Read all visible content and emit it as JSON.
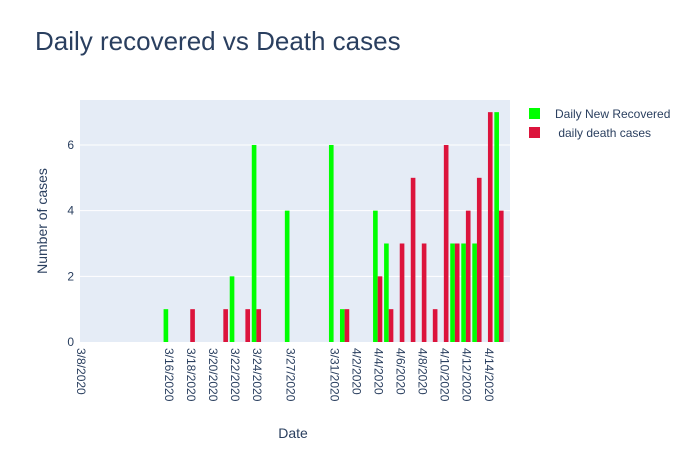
{
  "chart_data": {
    "type": "bar",
    "title": "Daily recovered vs Death cases",
    "xlabel": "Date",
    "ylabel": "Number of cases",
    "ylim": [
      0,
      7.37
    ],
    "y_ticks": [
      0,
      2,
      4,
      6
    ],
    "grid": true,
    "legend_position": "top-right",
    "categories": [
      "3/8/2020",
      "3/16/2020",
      "3/18/2020",
      "3/20/2020",
      "3/21/2020",
      "3/22/2020",
      "3/23/2020",
      "3/24/2020",
      "3/27/2020",
      "3/31/2020",
      "4/1/2020",
      "4/2/2020",
      "4/4/2020",
      "4/5/2020",
      "4/6/2020",
      "4/7/2020",
      "4/8/2020",
      "4/9/2020",
      "4/10/2020",
      "4/11/2020",
      "4/12/2020",
      "4/13/2020",
      "4/14/2020",
      "4/15/2020"
    ],
    "tick_labels": [
      "3/8/2020",
      "3/16/2020",
      "3/18/2020",
      "3/20/2020",
      "3/22/2020",
      "3/24/2020",
      "3/27/2020",
      "3/31/2020",
      "4/2/2020",
      "4/4/2020",
      "4/6/2020",
      "4/8/2020",
      "4/10/2020",
      "4/12/2020",
      "4/14/2020"
    ],
    "series": [
      {
        "name": "Daily New Recovered",
        "color": "#00ff00",
        "values": [
          0,
          1,
          0,
          0,
          0,
          2,
          0,
          6,
          4,
          6,
          1,
          0,
          4,
          3,
          0,
          0,
          0,
          0,
          0,
          3,
          3,
          3,
          0,
          7
        ]
      },
      {
        "name": " daily death cases",
        "color": "#dc143c",
        "values": [
          0,
          0,
          1,
          0,
          1,
          0,
          1,
          1,
          0,
          0,
          1,
          0,
          2,
          1,
          3,
          5,
          3,
          1,
          6,
          3,
          4,
          5,
          7,
          4
        ]
      }
    ]
  }
}
